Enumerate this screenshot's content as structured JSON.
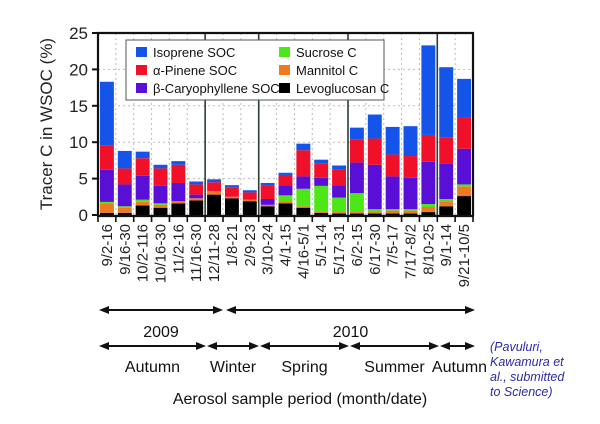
{
  "chart_data": {
    "type": "bar",
    "stacked": true,
    "title": "",
    "ylabel": "Tracer C in WSOC (%)",
    "xlabel": "Aerosol sample period (month/date)",
    "ylim": [
      0,
      25
    ],
    "yticks": [
      0,
      5,
      10,
      15,
      20,
      25
    ],
    "grid": true,
    "legend_position": "top-center",
    "categories": [
      "9/2-16",
      "9/16-30",
      "10/2-116",
      "10/16-30",
      "11/2-16",
      "11/16-30",
      "12/11-28",
      "1/8-21",
      "2/9-23",
      "3/10-24",
      "4/1-15",
      "4/16-5/1",
      "5/1-14",
      "5/17-31",
      "6/2-15",
      "6/17-30",
      "7/5-17",
      "7/17-8/2",
      "8/10-25",
      "9/1-14",
      "9/21-10/5"
    ],
    "series": [
      {
        "name": "Levoglucosan C",
        "color": "#000000",
        "values": [
          0.3,
          0.3,
          1.3,
          1.0,
          1.6,
          2.0,
          2.8,
          2.3,
          1.9,
          1.2,
          1.6,
          1.0,
          0.3,
          0.2,
          0.2,
          0.2,
          0.2,
          0.2,
          0.4,
          1.2,
          2.6
        ]
      },
      {
        "name": "Mannitol C",
        "color": "#f07820",
        "values": [
          1.3,
          0.7,
          0.5,
          0.4,
          0.3,
          0.3,
          0.5,
          0.2,
          0.2,
          0.2,
          0.3,
          0.2,
          0.2,
          0.2,
          0.2,
          0.2,
          0.4,
          0.4,
          0.7,
          0.7,
          1.3
        ]
      },
      {
        "name": "Sucrose C",
        "color": "#4de619",
        "values": [
          0.2,
          0.2,
          0.3,
          0.2,
          0.0,
          0.0,
          0.0,
          0.0,
          0.0,
          0.0,
          0.8,
          2.4,
          3.5,
          2.0,
          2.6,
          0.4,
          0.2,
          0.2,
          0.4,
          0.3,
          0.3
        ]
      },
      {
        "name": "β-Caryophyllene SOC",
        "color": "#5a0fd6",
        "values": [
          4.4,
          3.0,
          3.3,
          2.4,
          2.5,
          0.5,
          0.0,
          0.0,
          0.0,
          0.8,
          1.4,
          1.7,
          1.1,
          1.7,
          4.2,
          6.1,
          4.5,
          4.3,
          5.8,
          4.9,
          4.9
        ]
      },
      {
        "name": "α-Pinene SOC",
        "color": "#f0102a",
        "values": [
          3.3,
          2.2,
          2.4,
          2.4,
          2.5,
          1.4,
          1.2,
          1.3,
          1.0,
          1.8,
          1.4,
          3.6,
          2.0,
          2.1,
          3.2,
          3.6,
          3.0,
          3.0,
          3.7,
          3.5,
          4.3
        ]
      },
      {
        "name": "Isoprene SOC",
        "color": "#1454e8",
        "values": [
          8.8,
          2.4,
          0.9,
          0.5,
          0.5,
          0.4,
          0.4,
          0.3,
          0.3,
          0.4,
          0.3,
          0.9,
          0.5,
          0.6,
          1.6,
          3.3,
          3.8,
          4.1,
          12.3,
          9.7,
          5.3
        ]
      }
    ],
    "totals": [
      18.3,
      8.8,
      8.7,
      6.9,
      7.4,
      4.6,
      4.9,
      4.1,
      3.4,
      4.4,
      5.8,
      9.8,
      7.6,
      6.8,
      12.0,
      13.8,
      12.1,
      12.2,
      23.3,
      20.3,
      18.7
    ],
    "season_separators_after": [
      "11/16-30",
      "2/9-23",
      "5/17-31",
      "8/10-25"
    ]
  },
  "periods": {
    "years": [
      {
        "label": "2009"
      },
      {
        "label": "2010"
      }
    ],
    "seasons": [
      {
        "label": "Autumn"
      },
      {
        "label": "Winter"
      },
      {
        "label": "Spring"
      },
      {
        "label": "Summer"
      },
      {
        "label": "Autumn"
      }
    ]
  },
  "citation": {
    "line1": "(Pavuluri,",
    "line2": "Kawamura et",
    "line3": "al., submitted",
    "line4": "to Science)"
  }
}
